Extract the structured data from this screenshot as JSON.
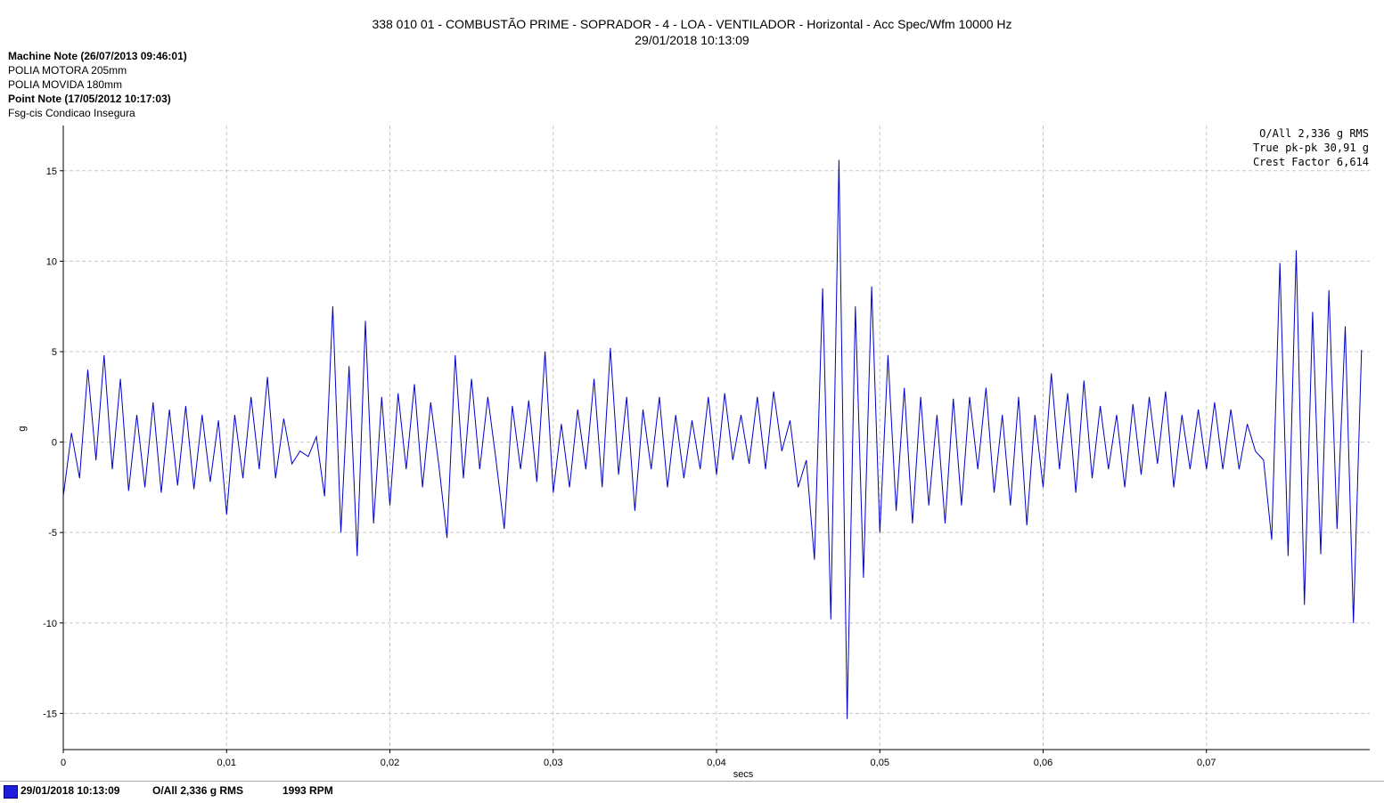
{
  "header": {
    "title": "338 010 01 - COMBUSTÃO PRIME - SOPRADOR - 4 - LOA - VENTILADOR - Horizontal - Acc Spec/Wfm 10000 Hz",
    "subtitle": "29/01/2018 10:13:09"
  },
  "notes": {
    "machine_note_label": "Machine Note (26/07/2013 09:46:01)",
    "machine_note_line1": "POLIA MOTORA 205mm",
    "machine_note_line2": "POLIA MOVIDA 180mm",
    "point_note_label": "Point Note (17/05/2012 10:17:03)",
    "point_note_line1": "Fsg-cis Condicao Insegura"
  },
  "stats": {
    "overall": "O/All 2,336 g RMS",
    "pkpk": "True pk-pk 30,91 g",
    "crest": "Crest Factor 6,614"
  },
  "footer": {
    "date": "29/01/2018 10:13:09",
    "overall": "O/All 2,336 g RMS",
    "rpm": "1993 RPM"
  },
  "colors": {
    "series": "#0000cc",
    "grid": "#c8c8c8",
    "footer_swatch": "#1e1edc"
  },
  "chart_data": {
    "type": "line",
    "xlabel": "secs",
    "ylabel": "g",
    "xlim": [
      0,
      0.08
    ],
    "ylim": [
      -17,
      17.5
    ],
    "x_ticks": [
      0,
      0.01,
      0.02,
      0.03,
      0.04,
      0.05,
      0.06,
      0.07
    ],
    "x_tick_labels": [
      "0",
      "0,01",
      "0,02",
      "0,03",
      "0,04",
      "0,05",
      "0,06",
      "0,07"
    ],
    "y_ticks": [
      15,
      10,
      5,
      0,
      -5,
      -10,
      -15
    ],
    "y_tick_labels": [
      "15",
      "10",
      "5",
      "0",
      "-5",
      "-10",
      "-15"
    ],
    "grid": true,
    "series": [
      {
        "x": [
          0,
          0.0005,
          0.001,
          0.0015,
          0.002,
          0.0025,
          0.003,
          0.0035,
          0.004,
          0.0045,
          0.005,
          0.0055,
          0.006,
          0.0065,
          0.007,
          0.0075,
          0.008,
          0.0085,
          0.009,
          0.0095,
          0.01,
          0.0105,
          0.011,
          0.0115,
          0.012,
          0.0125,
          0.013,
          0.0135,
          0.014,
          0.0145,
          0.015,
          0.0155,
          0.016,
          0.0165,
          0.017,
          0.0175,
          0.018,
          0.0185,
          0.019,
          0.0195,
          0.02,
          0.0205,
          0.021,
          0.0215,
          0.022,
          0.0225,
          0.023,
          0.0235,
          0.024,
          0.0245,
          0.025,
          0.0255,
          0.026,
          0.0265,
          0.027,
          0.0275,
          0.028,
          0.0285,
          0.029,
          0.0295,
          0.03,
          0.0305,
          0.031,
          0.0315,
          0.032,
          0.0325,
          0.033,
          0.0335,
          0.034,
          0.0345,
          0.035,
          0.0355,
          0.036,
          0.0365,
          0.037,
          0.0375,
          0.038,
          0.0385,
          0.039,
          0.0395,
          0.04,
          0.0405,
          0.041,
          0.0415,
          0.042,
          0.0425,
          0.043,
          0.0435,
          0.044,
          0.0445,
          0.045,
          0.0455,
          0.046,
          0.0465,
          0.047,
          0.0475,
          0.048,
          0.0485,
          0.049,
          0.0495,
          0.05,
          0.0505,
          0.051,
          0.0515,
          0.052,
          0.0525,
          0.053,
          0.0535,
          0.054,
          0.0545,
          0.055,
          0.0555,
          0.056,
          0.0565,
          0.057,
          0.0575,
          0.058,
          0.0585,
          0.059,
          0.0595,
          0.06,
          0.0605,
          0.061,
          0.0615,
          0.062,
          0.0625,
          0.063,
          0.0635,
          0.064,
          0.0645,
          0.065,
          0.0655,
          0.066,
          0.0665,
          0.067,
          0.0675,
          0.068,
          0.0685,
          0.069,
          0.0695,
          0.07,
          0.0705,
          0.071,
          0.0715,
          0.072,
          0.0725,
          0.073,
          0.0735,
          0.074,
          0.0745,
          0.075,
          0.0755,
          0.076,
          0.0765,
          0.077,
          0.0775,
          0.078,
          0.0785,
          0.079,
          0.0795
        ],
        "y": [
          -3,
          0.5,
          -2,
          4,
          -1,
          4.8,
          -1.5,
          3.5,
          -2.7,
          1.5,
          -2.5,
          2.2,
          -2.8,
          1.8,
          -2.4,
          2,
          -2.6,
          1.5,
          -2.2,
          1.2,
          -4,
          1.5,
          -2,
          2.5,
          -1.5,
          3.6,
          -2,
          1.3,
          -1.2,
          -0.5,
          -0.8,
          0.3,
          -3,
          7.5,
          -5,
          4.2,
          -6.3,
          6.7,
          -4.5,
          2.5,
          -3.5,
          2.7,
          -1.5,
          3.2,
          -2.5,
          2.2,
          -1.3,
          -5.3,
          4.8,
          -2,
          3.5,
          -1.5,
          2.5,
          -1,
          -4.8,
          2,
          -1.5,
          2.3,
          -2.2,
          5,
          -2.8,
          1,
          -2.5,
          1.8,
          -1.5,
          3.5,
          -2.5,
          5.2,
          -1.8,
          2.5,
          -3.8,
          1.8,
          -1.5,
          2.5,
          -2.5,
          1.5,
          -2,
          1.2,
          -1.5,
          2.5,
          -1.8,
          2.7,
          -1,
          1.5,
          -1.2,
          2.5,
          -1.5,
          2.8,
          -0.5,
          1.2,
          -2.5,
          -1,
          -6.5,
          8.5,
          -9.8,
          15.6,
          -15.3,
          7.5,
          -7.5,
          8.6,
          -5,
          4.8,
          -3.8,
          3,
          -4.5,
          2.5,
          -3.5,
          1.5,
          -4.5,
          2.4,
          -3.5,
          2.5,
          -1.5,
          3,
          -2.8,
          1.5,
          -3.5,
          2.5,
          -4.6,
          1.5,
          -2.5,
          3.8,
          -1.5,
          2.7,
          -2.8,
          3.4,
          -2,
          2,
          -1.5,
          1.5,
          -2.5,
          2.1,
          -1.8,
          2.5,
          -1.2,
          2.8,
          -2.5,
          1.5,
          -1.5,
          1.8,
          -1.5,
          2.2,
          -1.5,
          1.8,
          -1.5,
          1,
          -0.5,
          -1,
          -5.4,
          9.9,
          -6.3,
          10.6,
          -9,
          7.2,
          -6.2,
          8.4,
          -4.8,
          6.4,
          -10,
          5.1
        ]
      }
    ]
  }
}
